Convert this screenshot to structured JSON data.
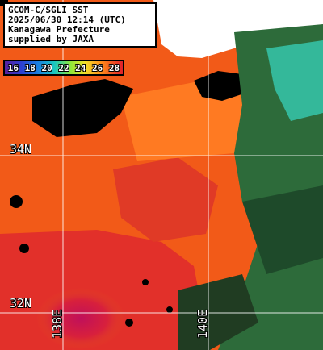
{
  "title": {
    "line1": "GCOM-C/SGLI SST",
    "line2": "2025/06/30 12:14 (UTC)",
    "line3": "Kanagawa Prefecture",
    "line4": "supplied by JAXA"
  },
  "legend": {
    "ticks": [
      "16",
      "18",
      "20",
      "22",
      "24",
      "26",
      "28"
    ]
  },
  "latitude_labels": [
    "34N",
    "32N"
  ],
  "longitude_labels": [
    "138E",
    "140E"
  ],
  "colors": {
    "land": "#000000",
    "cloud": "#ffffff",
    "sea_warm": "#f25a18",
    "sea_hot": "#d8203c",
    "sea_mid": "#ff8a2a",
    "sea_cool": "#2fc7b0",
    "grid": "#ffffff"
  }
}
